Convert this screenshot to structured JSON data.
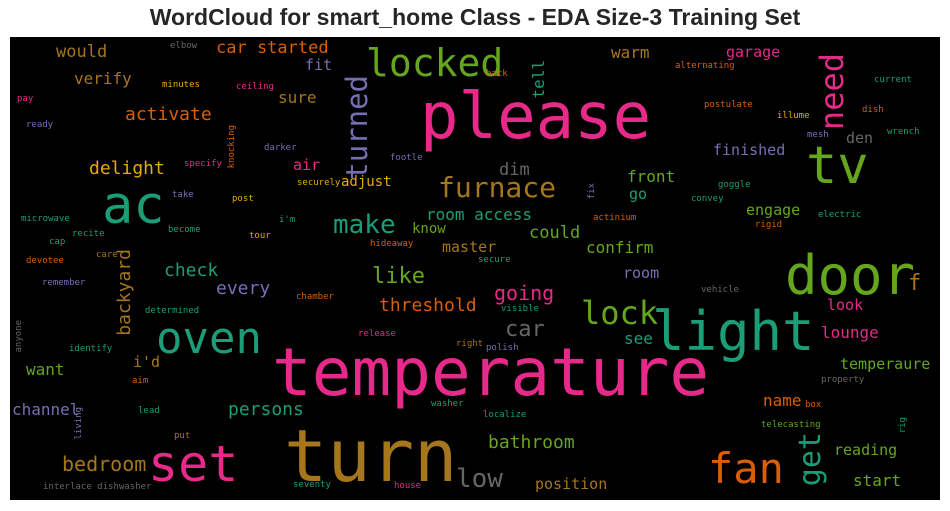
{
  "chart_data": {
    "type": "wordcloud",
    "title": "WordCloud for smart_home Class - EDA Size-3 Training Set",
    "background": "#000000",
    "colors": {
      "pink": "#e7298a",
      "green": "#1b9e77",
      "gold": "#a6761d",
      "lime": "#66a61e",
      "orange": "#d95f02",
      "purple": "#7570b3",
      "yellow": "#e6ab02",
      "grey": "#666666"
    },
    "words": [
      {
        "text": "temperature",
        "color": "pink"
      },
      {
        "text": "turn",
        "color": "gold"
      },
      {
        "text": "please",
        "color": "pink"
      },
      {
        "text": "light",
        "color": "green"
      },
      {
        "text": "door",
        "color": "lime"
      },
      {
        "text": "ac",
        "color": "green"
      },
      {
        "text": "tv",
        "color": "lime"
      },
      {
        "text": "oven",
        "color": "green"
      },
      {
        "text": "set",
        "color": "pink"
      },
      {
        "text": "fan",
        "color": "orange"
      },
      {
        "text": "locked",
        "color": "lime"
      },
      {
        "text": "furnace",
        "color": "gold"
      },
      {
        "text": "lock",
        "color": "lime"
      },
      {
        "text": "need",
        "color": "pink"
      },
      {
        "text": "turned",
        "color": "purple"
      },
      {
        "text": "get",
        "color": "green"
      },
      {
        "text": "low",
        "color": "grey"
      },
      {
        "text": "make",
        "color": "green"
      },
      {
        "text": "going",
        "color": "pink"
      },
      {
        "text": "car",
        "color": "grey"
      },
      {
        "text": "like",
        "color": "lime"
      },
      {
        "text": "bedroom",
        "color": "gold"
      },
      {
        "text": "f",
        "color": "gold"
      },
      {
        "text": "car started",
        "color": "orange"
      },
      {
        "text": "activate",
        "color": "orange"
      },
      {
        "text": "delight",
        "color": "yellow"
      },
      {
        "text": "check",
        "color": "green"
      },
      {
        "text": "every",
        "color": "purple"
      },
      {
        "text": "threshold",
        "color": "orange"
      },
      {
        "text": "room access",
        "color": "green"
      },
      {
        "text": "backyard",
        "color": "gold"
      },
      {
        "text": "persons",
        "color": "green"
      },
      {
        "text": "bathroom",
        "color": "lime"
      },
      {
        "text": "would",
        "color": "gold"
      },
      {
        "text": "verify",
        "color": "gold"
      },
      {
        "text": "sure",
        "color": "gold"
      },
      {
        "text": "tell",
        "color": "green"
      },
      {
        "text": "warm",
        "color": "gold"
      },
      {
        "text": "garage",
        "color": "pink"
      },
      {
        "text": "dim",
        "color": "grey"
      },
      {
        "text": "front",
        "color": "lime"
      },
      {
        "text": "could",
        "color": "lime"
      },
      {
        "text": "confirm",
        "color": "lime"
      },
      {
        "text": "engage",
        "color": "lime"
      },
      {
        "text": "finished",
        "color": "purple"
      },
      {
        "text": "den",
        "color": "grey"
      },
      {
        "text": "adjust",
        "color": "yellow"
      },
      {
        "text": "master",
        "color": "gold"
      },
      {
        "text": "lounge",
        "color": "pink"
      },
      {
        "text": "temperaure",
        "color": "lime"
      },
      {
        "text": "reading",
        "color": "lime"
      },
      {
        "text": "start",
        "color": "lime"
      },
      {
        "text": "name",
        "color": "orange"
      },
      {
        "text": "position",
        "color": "gold"
      },
      {
        "text": "want",
        "color": "lime"
      },
      {
        "text": "channel",
        "color": "purple"
      },
      {
        "text": "see",
        "color": "green"
      },
      {
        "text": "look",
        "color": "pink"
      },
      {
        "text": "room",
        "color": "purple"
      },
      {
        "text": "know",
        "color": "lime"
      },
      {
        "text": "go",
        "color": "green"
      },
      {
        "text": "air",
        "color": "pink"
      },
      {
        "text": "fit",
        "color": "purple"
      },
      {
        "text": "i'd",
        "color": "gold"
      },
      {
        "text": "elbow",
        "color": "grey"
      },
      {
        "text": "minutes",
        "color": "yellow"
      },
      {
        "text": "ceiling",
        "color": "pink"
      },
      {
        "text": "pay",
        "color": "pink"
      },
      {
        "text": "ready",
        "color": "purple"
      },
      {
        "text": "knocking",
        "color": "orange"
      },
      {
        "text": "darker",
        "color": "purple"
      },
      {
        "text": "specify",
        "color": "pink"
      },
      {
        "text": "footle",
        "color": "purple"
      },
      {
        "text": "securely",
        "color": "yellow"
      },
      {
        "text": "back",
        "color": "orange"
      },
      {
        "text": "alternating",
        "color": "orange"
      },
      {
        "text": "current",
        "color": "green"
      },
      {
        "text": "postulate",
        "color": "orange"
      },
      {
        "text": "illume",
        "color": "yellow"
      },
      {
        "text": "dish",
        "color": "orange"
      },
      {
        "text": "mesh",
        "color": "purple"
      },
      {
        "text": "wrench",
        "color": "green"
      },
      {
        "text": "goggle",
        "color": "green"
      },
      {
        "text": "convey",
        "color": "green"
      },
      {
        "text": "electric",
        "color": "green"
      },
      {
        "text": "rigid",
        "color": "orange"
      },
      {
        "text": "fix",
        "color": "purple"
      },
      {
        "text": "actinium",
        "color": "orange"
      },
      {
        "text": "take",
        "color": "purple"
      },
      {
        "text": "post",
        "color": "yellow"
      },
      {
        "text": "i'm",
        "color": "green"
      },
      {
        "text": "microwave",
        "color": "green"
      },
      {
        "text": "recite",
        "color": "green"
      },
      {
        "text": "become",
        "color": "green"
      },
      {
        "text": "tour",
        "color": "yellow"
      },
      {
        "text": "hideaway",
        "color": "orange"
      },
      {
        "text": "cap",
        "color": "green"
      },
      {
        "text": "care",
        "color": "gold"
      },
      {
        "text": "devotee",
        "color": "orange"
      },
      {
        "text": "secure",
        "color": "green"
      },
      {
        "text": "remember",
        "color": "purple"
      },
      {
        "text": "chamber",
        "color": "orange"
      },
      {
        "text": "vehicle",
        "color": "grey"
      },
      {
        "text": "determined",
        "color": "green"
      },
      {
        "text": "visible",
        "color": "green"
      },
      {
        "text": "release",
        "color": "pink"
      },
      {
        "text": "anyone",
        "color": "grey"
      },
      {
        "text": "identify",
        "color": "green"
      },
      {
        "text": "right",
        "color": "gold"
      },
      {
        "text": "polish",
        "color": "purple"
      },
      {
        "text": "aim",
        "color": "orange"
      },
      {
        "text": "property",
        "color": "grey"
      },
      {
        "text": "box",
        "color": "orange"
      },
      {
        "text": "lead",
        "color": "green"
      },
      {
        "text": "living",
        "color": "purple"
      },
      {
        "text": "washer",
        "color": "green"
      },
      {
        "text": "localize",
        "color": "green"
      },
      {
        "text": "rig",
        "color": "green"
      },
      {
        "text": "telecasting",
        "color": "lime"
      },
      {
        "text": "put",
        "color": "gold"
      },
      {
        "text": "interlace dishwasher",
        "color": "grey"
      },
      {
        "text": "seventy",
        "color": "green"
      },
      {
        "text": "house",
        "color": "pink"
      }
    ]
  }
}
